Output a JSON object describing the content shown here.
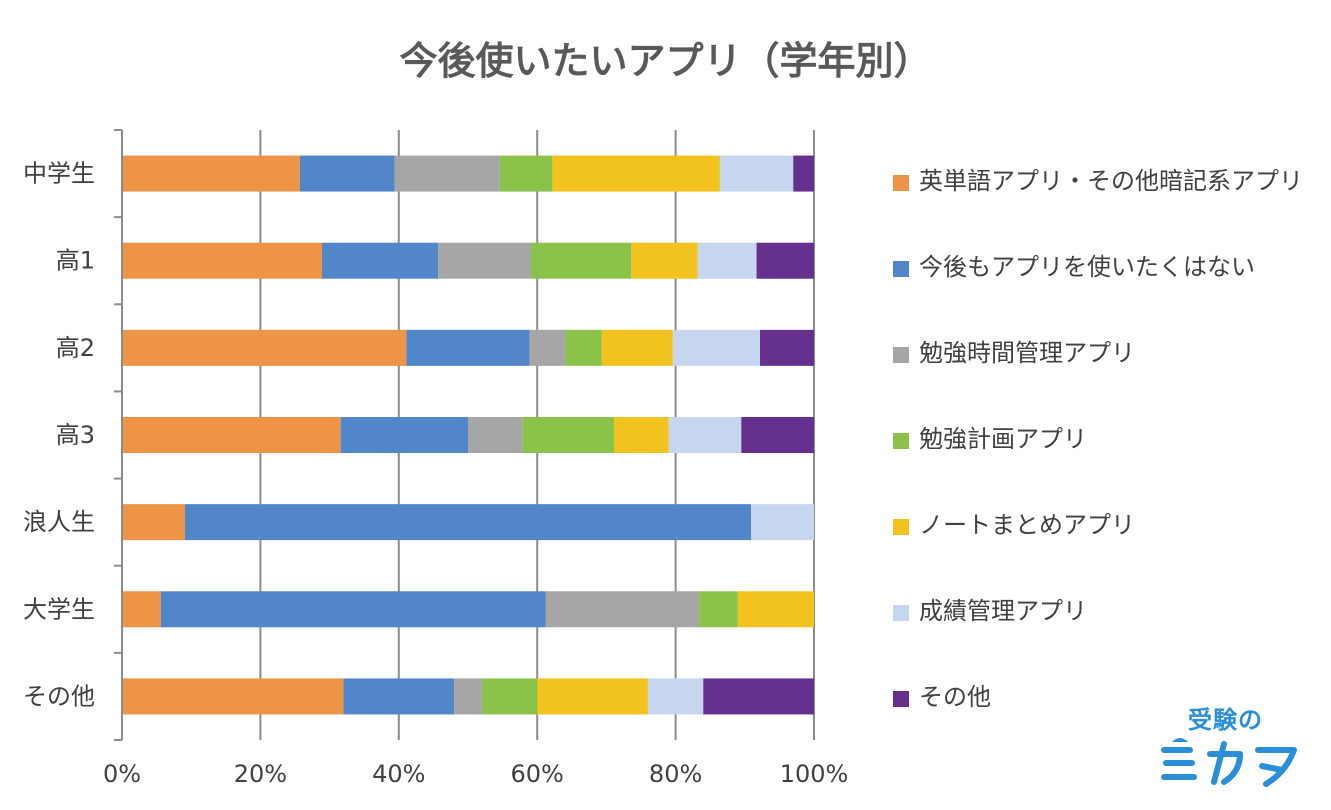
{
  "title": "今後使いたいアプリ（学年別）",
  "chart_data": {
    "type": "bar",
    "orientation": "horizontal",
    "stacked": "percent",
    "title": "今後使いたいアプリ（学年別）",
    "categories": [
      "中学生",
      "高1",
      "高2",
      "高3",
      "浪人生",
      "大学生",
      "その他"
    ],
    "x_ticks": [
      "0%",
      "20%",
      "40%",
      "60%",
      "80%",
      "100%"
    ],
    "xlim": [
      0,
      100
    ],
    "grid": true,
    "legend_position": "right",
    "series": [
      {
        "name": "英単語アプリ・その他暗記系アプリ",
        "color": "#ED9447",
        "values": [
          25.7,
          28.9,
          41.1,
          31.6,
          9.1,
          5.6,
          32.0
        ]
      },
      {
        "name": "今後もアプリを使いたくはない",
        "color": "#5187C8",
        "values": [
          13.7,
          16.8,
          17.8,
          18.4,
          81.8,
          55.6,
          16.0
        ]
      },
      {
        "name": "勉強時間管理アプリ",
        "color": "#A6A6A6",
        "values": [
          15.2,
          13.4,
          5.2,
          7.9,
          0,
          22.2,
          4.0
        ]
      },
      {
        "name": "勉強計画アプリ",
        "color": "#8BC34A",
        "values": [
          7.6,
          14.5,
          5.2,
          13.2,
          0,
          5.6,
          8.0
        ]
      },
      {
        "name": "ノートまとめアプリ",
        "color": "#F2C21F",
        "values": [
          24.2,
          9.6,
          10.3,
          7.9,
          0,
          11.0,
          16.0
        ]
      },
      {
        "name": "成績管理アプリ",
        "color": "#C5D6EE",
        "values": [
          10.6,
          8.5,
          12.6,
          10.5,
          9.1,
          0,
          8.0
        ]
      },
      {
        "name": "その他",
        "color": "#66308F",
        "values": [
          3.0,
          8.3,
          7.8,
          10.5,
          0,
          0,
          16.0
        ]
      }
    ]
  },
  "logo": {
    "top_text": "受験の",
    "bottom_text": "ミカタ",
    "color": "#2a8fd6"
  }
}
